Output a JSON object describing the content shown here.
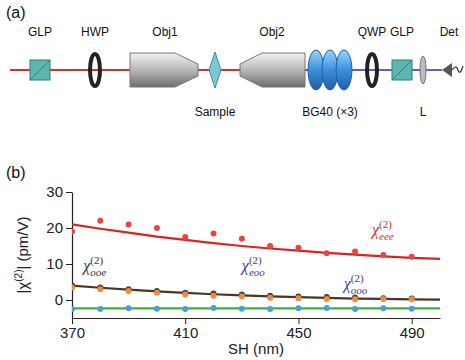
{
  "diagram": {
    "label": "(a)",
    "components": [
      "GLP",
      "HWP",
      "Obj1",
      "Sample",
      "Obj2",
      "BG40 (×3)",
      "QWP",
      "GLP",
      "L",
      "Det"
    ]
  },
  "chart_data": {
    "type": "scatter",
    "panel_label": "(b)",
    "x_label": "SH (nm)",
    "y_label": [
      "|χ",
      "(2)",
      "| (pm/V)"
    ],
    "x": [
      370,
      380,
      390,
      400,
      410,
      420,
      430,
      440,
      450,
      460,
      470,
      480,
      490,
      500
    ],
    "xlim": [
      370,
      500
    ],
    "xticks": [
      370,
      410,
      450,
      490
    ],
    "ylim": [
      -5,
      30
    ],
    "yticks": [
      0,
      10,
      20,
      30
    ],
    "grid": false,
    "series": [
      {
        "type": "scatter",
        "marker": "circle",
        "color": "#e8453c",
        "values": [
          19,
          22,
          21,
          20,
          17.5,
          18.5,
          17,
          15,
          14.5,
          13,
          13.5,
          12.5,
          12,
          null
        ]
      },
      {
        "type": "line",
        "line_style": "solid",
        "color": "#e02020",
        "values": [
          21,
          19.8,
          18.7,
          17.6,
          16.7,
          15.8,
          15,
          14.3,
          13.7,
          13.1,
          12.6,
          12.1,
          11.7,
          11.4
        ]
      },
      {
        "type": "scatter",
        "marker": "circle",
        "color": "#444444",
        "values": [
          4,
          3.5,
          3,
          2.5,
          2,
          1.8,
          1.5,
          1.2,
          1,
          0.8,
          0.7,
          0.5,
          0.4,
          null
        ]
      },
      {
        "type": "scatter",
        "marker": "circle",
        "color": "#f08a3c",
        "values": [
          3.5,
          3,
          2.5,
          2,
          1.5,
          1.2,
          1,
          0.6,
          0.5,
          0.3,
          0.2,
          0.3,
          0.2,
          null
        ]
      },
      {
        "type": "line",
        "line_style": "solid",
        "color": "#4a3528",
        "values": [
          4,
          3.4,
          2.9,
          2.4,
          2,
          1.6,
          1.3,
          1,
          0.8,
          0.6,
          0.4,
          0.3,
          0.2,
          0.1
        ]
      },
      {
        "type": "scatter",
        "marker": "circle",
        "color": "#4aa0d0",
        "values": [
          -2.5,
          -2.5,
          -2.3,
          -2.4,
          -2.5,
          -2.2,
          -2.4,
          -2.5,
          -2.3,
          -2.2,
          -2.5,
          -2.3,
          -2.4,
          null
        ]
      },
      {
        "type": "line",
        "line_style": "solid",
        "color": "#3cb043",
        "values": [
          -2.3,
          -2.3,
          -2.3,
          -2.3,
          -2.3,
          -2.3,
          -2.3,
          -2.3,
          -2.3,
          -2.3,
          -2.3,
          -2.3,
          -2.3,
          -2.3
        ]
      }
    ],
    "annotations": [
      {
        "parts": [
          "χ",
          "(2)",
          "eee"
        ],
        "color": "#d42a2a",
        "x": 476,
        "y": 18
      },
      {
        "parts": [
          "χ",
          "(2)",
          "ooe"
        ],
        "color": "#333333",
        "x": 374,
        "y": 8
      },
      {
        "parts": [
          "χ",
          "(2)",
          "eoo"
        ],
        "color": "#3b3b8f",
        "x": 430,
        "y": 8
      },
      {
        "parts": [
          "χ",
          "(2)",
          "ooo"
        ],
        "color": "#3b3b8f",
        "x": 466,
        "y": 3
      }
    ]
  }
}
